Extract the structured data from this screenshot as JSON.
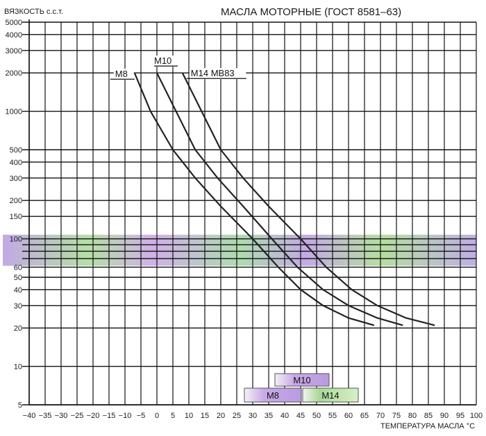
{
  "chart_data": {
    "type": "line",
    "title": "МАСЛА МОТОРНЫЕ  (ГОСТ 8581–63)",
    "ylabel": "ВЯЗКОСТЬ с.с.т.",
    "xlabel": "ТЕМПЕРАТУРА МАСЛА °С",
    "yscale": "log",
    "xlim": [
      -40,
      100
    ],
    "ylim": [
      5,
      5000
    ],
    "grid": true,
    "x_ticks": [
      -40,
      -35,
      -30,
      -25,
      -20,
      -15,
      -10,
      -5,
      0,
      5,
      10,
      15,
      20,
      25,
      30,
      35,
      40,
      45,
      50,
      55,
      60,
      65,
      70,
      75,
      80,
      85,
      90,
      95,
      100
    ],
    "y_ticks": [
      5,
      10,
      20,
      30,
      40,
      50,
      60,
      100,
      150,
      200,
      300,
      400,
      500,
      1000,
      2000,
      3000,
      4000,
      5000
    ],
    "y_gridlines": [
      5,
      10,
      20,
      30,
      40,
      50,
      60,
      70,
      80,
      90,
      100,
      150,
      200,
      300,
      400,
      500,
      1000,
      2000,
      3000,
      4000,
      5000
    ],
    "band": {
      "from": 60,
      "to": 100,
      "description": "operating viscosity range"
    },
    "series": [
      {
        "name": "М8",
        "points": [
          [
            -7,
            2000
          ],
          [
            -2,
            1000
          ],
          [
            5,
            500
          ],
          [
            12,
            300
          ],
          [
            20,
            180
          ],
          [
            30,
            100
          ],
          [
            38,
            60
          ],
          [
            45,
            40
          ],
          [
            52,
            30
          ],
          [
            60,
            24
          ],
          [
            68,
            21
          ]
        ]
      },
      {
        "name": "М10",
        "points": [
          [
            0,
            2000
          ],
          [
            6,
            1000
          ],
          [
            12,
            500
          ],
          [
            19,
            300
          ],
          [
            27,
            180
          ],
          [
            36,
            100
          ],
          [
            44,
            60
          ],
          [
            52,
            40
          ],
          [
            60,
            30
          ],
          [
            69,
            24
          ],
          [
            77,
            21
          ]
        ]
      },
      {
        "name": "М14  МВ83",
        "points": [
          [
            8,
            2000
          ],
          [
            14,
            1000
          ],
          [
            20,
            500
          ],
          [
            27,
            300
          ],
          [
            35,
            180
          ],
          [
            45,
            100
          ],
          [
            53,
            60
          ],
          [
            61,
            40
          ],
          [
            69,
            30
          ],
          [
            78,
            24
          ],
          [
            87,
            21
          ]
        ]
      }
    ],
    "legend_boxes": [
      {
        "label": "М10",
        "position": "bottom-center"
      },
      {
        "label": "М8",
        "position": "bottom-center"
      },
      {
        "label": "М14",
        "position": "bottom-center"
      }
    ],
    "colors": {
      "grid": "#111111",
      "curve": "#222222",
      "band_a": "#b79adf",
      "band_b": "#a9d996",
      "box_fill": "#ececec"
    }
  }
}
